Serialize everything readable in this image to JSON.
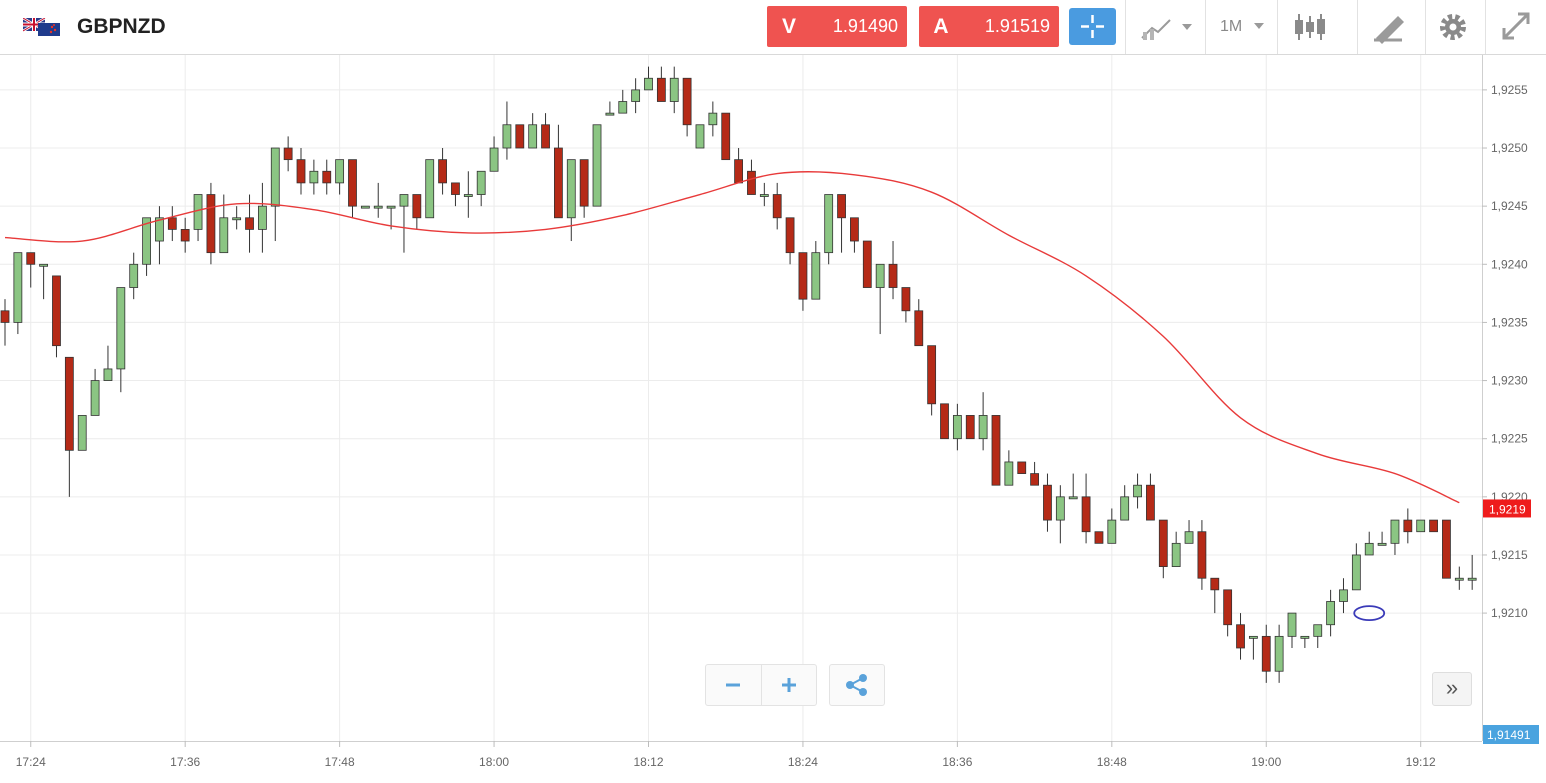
{
  "header": {
    "symbol": "GBPNZD",
    "flag_icon": "uk-nz-flag-icon",
    "sell": {
      "letter": "V",
      "price": "1.91490"
    },
    "buy": {
      "letter": "A",
      "price": "1.91519"
    },
    "timeframe": "1M",
    "accent_color": "#4a9be0",
    "quote_color": "#ef5350",
    "tools": [
      "crosshair-icon",
      "chart-type-icon",
      "timeframe-selector",
      "candles-icon",
      "draw-icon",
      "gear-icon",
      "fullscreen-icon"
    ]
  },
  "controls": {
    "zoom_out_icon": "minus-icon",
    "zoom_in_icon": "plus-icon",
    "share_icon": "share-icon",
    "scroll_icon": "double-chevron-right-icon"
  },
  "chart_data": {
    "type": "candlestick",
    "title": "",
    "xlabel": "",
    "ylabel": "",
    "ylim": [
      1.9199,
      1.9258
    ],
    "y_ticks": [
      "1,9255",
      "1,9250",
      "1,9245",
      "1,9240",
      "1,9235",
      "1,9230",
      "1,9225",
      "1,9220",
      "1,9215",
      "1,9210"
    ],
    "x_ticks": [
      {
        "label": "17:24",
        "t": 2
      },
      {
        "label": "17:36",
        "t": 14
      },
      {
        "label": "17:48",
        "t": 26
      },
      {
        "label": "18:00",
        "t": 38
      },
      {
        "label": "18:12",
        "t": 50
      },
      {
        "label": "18:24",
        "t": 62
      },
      {
        "label": "18:36",
        "t": 74
      },
      {
        "label": "18:48",
        "t": 86
      },
      {
        "label": "19:00",
        "t": 98
      },
      {
        "label": "19:12",
        "t": 110
      }
    ],
    "current_price_label": "1,9219",
    "current_price": 1.9219,
    "bid_label": "1,91491",
    "bullish_color": "#8bc583",
    "bearish_color": "#b52a17",
    "ma_color": "#e83a3a",
    "grid": true,
    "candles": [
      [
        1.9236,
        1.9235,
        1.9237,
        1.9233
      ],
      [
        1.9235,
        1.9241,
        1.9241,
        1.9234
      ],
      [
        1.9241,
        1.924,
        1.9241,
        1.9238
      ],
      [
        1.924,
        1.924,
        1.924,
        1.9237
      ],
      [
        1.9239,
        1.9233,
        1.9239,
        1.9232
      ],
      [
        1.9232,
        1.9224,
        1.9232,
        1.922
      ],
      [
        1.9224,
        1.9227,
        1.9227,
        1.9224
      ],
      [
        1.9227,
        1.923,
        1.9231,
        1.9227
      ],
      [
        1.923,
        1.9231,
        1.9233,
        1.923
      ],
      [
        1.9231,
        1.9238,
        1.9238,
        1.9229
      ],
      [
        1.9238,
        1.924,
        1.9241,
        1.9237
      ],
      [
        1.924,
        1.9244,
        1.9244,
        1.9239
      ],
      [
        1.9242,
        1.9244,
        1.9245,
        1.924
      ],
      [
        1.9244,
        1.9243,
        1.9245,
        1.9242
      ],
      [
        1.9243,
        1.9242,
        1.9244,
        1.9241
      ],
      [
        1.9243,
        1.9246,
        1.9246,
        1.9242
      ],
      [
        1.9246,
        1.9241,
        1.9247,
        1.924
      ],
      [
        1.9241,
        1.9244,
        1.9246,
        1.9241
      ],
      [
        1.9244,
        1.9244,
        1.9245,
        1.9243
      ],
      [
        1.9244,
        1.9243,
        1.9246,
        1.9241
      ],
      [
        1.9243,
        1.9245,
        1.9247,
        1.9241
      ],
      [
        1.9245,
        1.925,
        1.925,
        1.9242
      ],
      [
        1.925,
        1.9249,
        1.9251,
        1.9248
      ],
      [
        1.9249,
        1.9247,
        1.925,
        1.9246
      ],
      [
        1.9247,
        1.9248,
        1.9249,
        1.9246
      ],
      [
        1.9248,
        1.9247,
        1.9249,
        1.9246
      ],
      [
        1.9247,
        1.9249,
        1.9249,
        1.9246
      ],
      [
        1.9249,
        1.9245,
        1.9249,
        1.9244
      ],
      [
        1.9245,
        1.9245,
        1.9245,
        1.9245
      ],
      [
        1.9245,
        1.9245,
        1.9247,
        1.9244
      ],
      [
        1.9245,
        1.9245,
        1.9245,
        1.9243
      ],
      [
        1.9245,
        1.9246,
        1.9246,
        1.9241
      ],
      [
        1.9246,
        1.9244,
        1.9246,
        1.9243
      ],
      [
        1.9244,
        1.9249,
        1.9249,
        1.9244
      ],
      [
        1.9249,
        1.9247,
        1.925,
        1.9246
      ],
      [
        1.9247,
        1.9246,
        1.9247,
        1.9245
      ],
      [
        1.9246,
        1.9246,
        1.9248,
        1.9244
      ],
      [
        1.9246,
        1.9248,
        1.9248,
        1.9245
      ],
      [
        1.9248,
        1.925,
        1.9251,
        1.9248
      ],
      [
        1.925,
        1.9252,
        1.9254,
        1.9249
      ],
      [
        1.9252,
        1.925,
        1.9252,
        1.925
      ],
      [
        1.925,
        1.9252,
        1.9253,
        1.925
      ],
      [
        1.9252,
        1.925,
        1.9253,
        1.925
      ],
      [
        1.925,
        1.9244,
        1.9252,
        1.9244
      ],
      [
        1.9244,
        1.9249,
        1.9249,
        1.9242
      ],
      [
        1.9249,
        1.9245,
        1.9249,
        1.9244
      ],
      [
        1.9245,
        1.9252,
        1.9252,
        1.9245
      ],
      [
        1.9253,
        1.9253,
        1.9254,
        1.9253
      ],
      [
        1.9253,
        1.9254,
        1.9255,
        1.9253
      ],
      [
        1.9254,
        1.9255,
        1.9256,
        1.9253
      ],
      [
        1.9255,
        1.9256,
        1.9257,
        1.9255
      ],
      [
        1.9256,
        1.9254,
        1.9257,
        1.9254
      ],
      [
        1.9254,
        1.9256,
        1.9257,
        1.9253
      ],
      [
        1.9256,
        1.9252,
        1.9256,
        1.9251
      ],
      [
        1.925,
        1.9252,
        1.9252,
        1.925
      ],
      [
        1.9252,
        1.9253,
        1.9254,
        1.9251
      ],
      [
        1.9253,
        1.9249,
        1.9253,
        1.9249
      ],
      [
        1.9249,
        1.9247,
        1.925,
        1.9247
      ],
      [
        1.9248,
        1.9246,
        1.9249,
        1.9246
      ],
      [
        1.9246,
        1.9246,
        1.9247,
        1.9245
      ],
      [
        1.9246,
        1.9244,
        1.9247,
        1.9243
      ],
      [
        1.9244,
        1.9241,
        1.9244,
        1.924
      ],
      [
        1.9241,
        1.9237,
        1.9241,
        1.9236
      ],
      [
        1.9237,
        1.9241,
        1.9242,
        1.9237
      ],
      [
        1.9241,
        1.9246,
        1.9246,
        1.924
      ],
      [
        1.9246,
        1.9244,
        1.9246,
        1.9241
      ],
      [
        1.9244,
        1.9242,
        1.9244,
        1.9241
      ],
      [
        1.9242,
        1.9238,
        1.9242,
        1.9238
      ],
      [
        1.9238,
        1.924,
        1.924,
        1.9234
      ],
      [
        1.924,
        1.9238,
        1.9242,
        1.9237
      ],
      [
        1.9238,
        1.9236,
        1.9238,
        1.9235
      ],
      [
        1.9236,
        1.9233,
        1.9237,
        1.9233
      ],
      [
        1.9233,
        1.9228,
        1.9233,
        1.9227
      ],
      [
        1.9228,
        1.9225,
        1.9228,
        1.9225
      ],
      [
        1.9225,
        1.9227,
        1.9228,
        1.9224
      ],
      [
        1.9227,
        1.9225,
        1.9227,
        1.9225
      ],
      [
        1.9225,
        1.9227,
        1.9229,
        1.9224
      ],
      [
        1.9227,
        1.9221,
        1.9227,
        1.9221
      ],
      [
        1.9221,
        1.9223,
        1.9224,
        1.9221
      ],
      [
        1.9223,
        1.9222,
        1.9223,
        1.9222
      ],
      [
        1.9222,
        1.9221,
        1.9223,
        1.9221
      ],
      [
        1.9221,
        1.9218,
        1.9222,
        1.9217
      ],
      [
        1.9218,
        1.922,
        1.9221,
        1.9216
      ],
      [
        1.922,
        1.922,
        1.9222,
        1.922
      ],
      [
        1.922,
        1.9217,
        1.9222,
        1.9216
      ],
      [
        1.9217,
        1.9216,
        1.9217,
        1.9216
      ],
      [
        1.9216,
        1.9218,
        1.9219,
        1.9216
      ],
      [
        1.9218,
        1.922,
        1.9221,
        1.9218
      ],
      [
        1.922,
        1.9221,
        1.9222,
        1.9219
      ],
      [
        1.9221,
        1.9218,
        1.9222,
        1.9218
      ],
      [
        1.9218,
        1.9214,
        1.9218,
        1.9213
      ],
      [
        1.9214,
        1.9216,
        1.9217,
        1.9214
      ],
      [
        1.9216,
        1.9217,
        1.9218,
        1.9216
      ],
      [
        1.9217,
        1.9213,
        1.9218,
        1.9212
      ],
      [
        1.9213,
        1.9212,
        1.9213,
        1.921
      ],
      [
        1.9212,
        1.9209,
        1.9212,
        1.9208
      ],
      [
        1.9209,
        1.9207,
        1.921,
        1.9206
      ],
      [
        1.9208,
        1.9208,
        1.9208,
        1.9206
      ],
      [
        1.9208,
        1.9205,
        1.9209,
        1.9204
      ],
      [
        1.9205,
        1.9208,
        1.9209,
        1.9204
      ],
      [
        1.9208,
        1.921,
        1.921,
        1.9207
      ],
      [
        1.9208,
        1.9208,
        1.9208,
        1.9207
      ],
      [
        1.9208,
        1.9209,
        1.9209,
        1.9207
      ],
      [
        1.9209,
        1.9211,
        1.9212,
        1.9208
      ],
      [
        1.9211,
        1.9212,
        1.9213,
        1.921
      ],
      [
        1.9212,
        1.9215,
        1.9216,
        1.9212
      ],
      [
        1.9215,
        1.9216,
        1.9217,
        1.9215
      ],
      [
        1.9216,
        1.9216,
        1.9217,
        1.9216
      ],
      [
        1.9216,
        1.9218,
        1.9218,
        1.9215
      ],
      [
        1.9218,
        1.9217,
        1.9219,
        1.9216
      ],
      [
        1.9217,
        1.9218,
        1.9218,
        1.9217
      ],
      [
        1.9218,
        1.9217,
        1.9218,
        1.9217
      ],
      [
        1.9218,
        1.9213,
        1.9218,
        1.9213
      ],
      [
        1.9213,
        1.9213,
        1.9214,
        1.9212
      ],
      [
        1.9213,
        1.9213,
        1.9215,
        1.9212
      ]
    ],
    "series": [
      {
        "type": "line",
        "points": [
          [
            0,
            1.92423
          ],
          [
            6,
            1.9242
          ],
          [
            12,
            1.92438
          ],
          [
            18,
            1.92452
          ],
          [
            24,
            1.92447
          ],
          [
            30,
            1.92433
          ],
          [
            36,
            1.92427
          ],
          [
            42,
            1.9243
          ],
          [
            48,
            1.92442
          ],
          [
            54,
            1.9246
          ],
          [
            60,
            1.92478
          ],
          [
            66,
            1.92477
          ],
          [
            72,
            1.92462
          ],
          [
            78,
            1.92425
          ],
          [
            84,
            1.9239
          ],
          [
            90,
            1.92338
          ],
          [
            96,
            1.92268
          ],
          [
            102,
            1.92237
          ],
          [
            108,
            1.9222
          ],
          [
            113,
            1.92195
          ]
        ]
      }
    ],
    "marker": {
      "t": 106,
      "price": 1.921,
      "color": "#3a3ab8"
    }
  }
}
